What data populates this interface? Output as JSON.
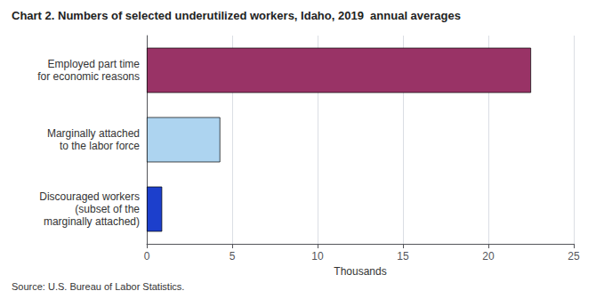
{
  "chart_data": {
    "type": "bar",
    "orientation": "horizontal",
    "title": "Chart 2. Numbers of selected underutilized workers, Idaho, 2019  annual averages",
    "source": "Source: U.S. Bureau of Labor Statistics.",
    "categories": [
      "Discouraged workers\n(subset of the\nmarginally attached)",
      "Marginally attached\nto the labor force",
      "Employed part time\nfor economic reasons"
    ],
    "values": [
      0.9,
      4.3,
      22.5
    ],
    "colors": [
      "#1c3fcc",
      "#add4f0",
      "#993366"
    ],
    "xlabel": "Thousands",
    "xlim": [
      0,
      25
    ],
    "xticks": [
      0,
      5,
      10,
      15,
      20,
      25
    ],
    "grid": true
  }
}
